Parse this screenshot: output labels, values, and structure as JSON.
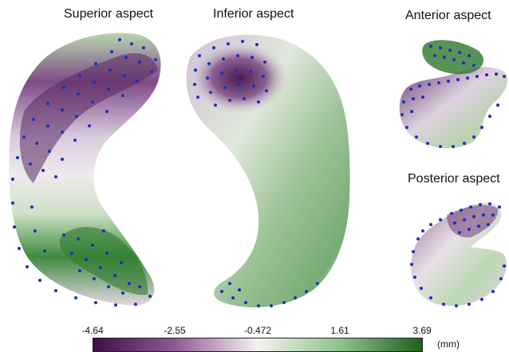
{
  "views": {
    "superior": "Superior aspect",
    "inferior": "Inferior aspect",
    "anterior": "Anterior aspect",
    "posterior": "Posterior aspect"
  },
  "colorbar": {
    "ticks": [
      "-4.64",
      "-2.55",
      "-0.472",
      "1.61",
      "3.69"
    ],
    "unit": "(mm)",
    "colors": {
      "min": "#3d0f45",
      "mid": "#f5f2f2",
      "max": "#1f5f1f"
    }
  },
  "landmark_color": "#1f2fbf"
}
